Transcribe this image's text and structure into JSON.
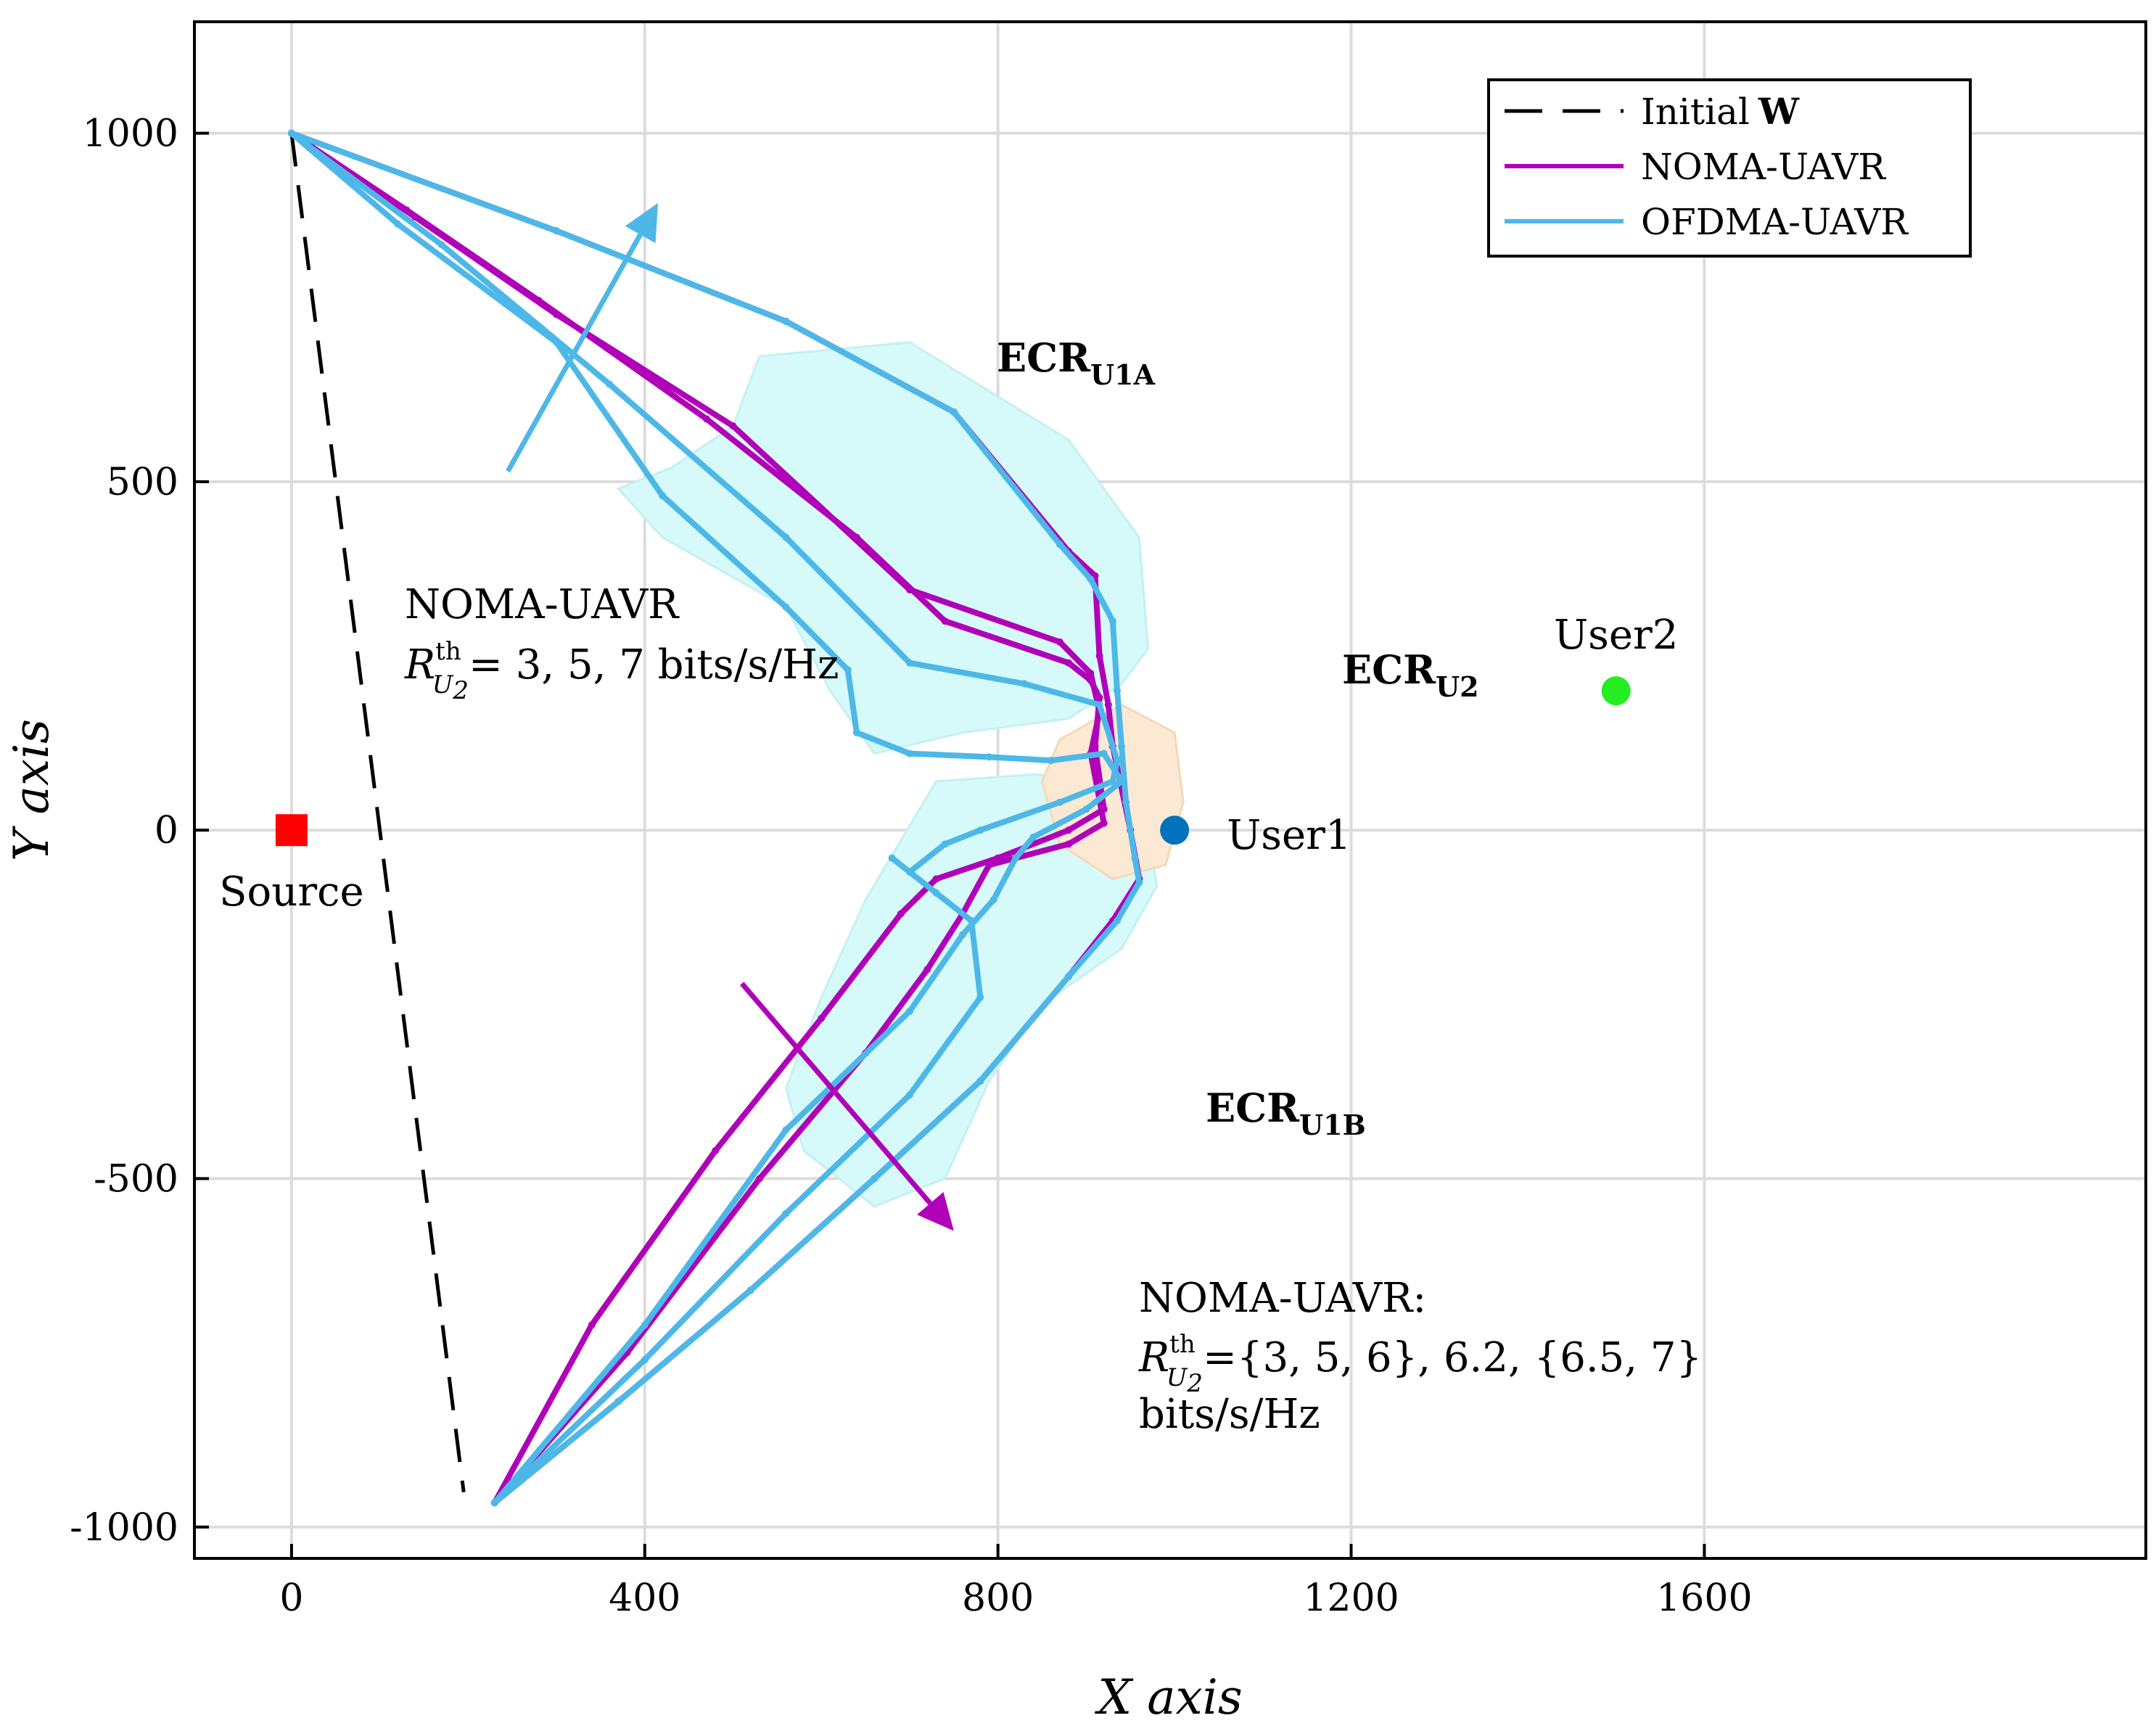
{
  "chart_data": {
    "type": "line",
    "xlabel": "X axis",
    "ylabel": "Y axis",
    "xlim": [
      -110,
      2100
    ],
    "ylim": [
      -1045,
      1160
    ],
    "xticks": [
      0,
      400,
      800,
      1200,
      1600
    ],
    "xtick_labels": [
      "0",
      "400",
      "800",
      "1200",
      "1600"
    ],
    "yticks": [
      -1000,
      -500,
      0,
      500,
      1000
    ],
    "ytick_labels": [
      "-1000",
      "-500",
      "0",
      "500",
      "1000"
    ],
    "grid": true,
    "legend": {
      "placement": "top-right",
      "entries": [
        {
          "label": "Initial",
          "bold_symbol": "W",
          "color": "#000000",
          "style": "dashed"
        },
        {
          "label": "NOMA-UAVR",
          "color": "#b000b8",
          "style": "solid"
        },
        {
          "label": "OFDMA-UAVR",
          "color": "#4db8e8",
          "style": "solid"
        }
      ]
    },
    "colors": {
      "noma": "#b000b8",
      "ofdma": "#4db8e8",
      "initial": "#000000",
      "ecr_u1": "#d6fafa",
      "ecr_u2": "#fbe9d4",
      "ecr_u1_label": "#2cc8d6",
      "ecr_u2_label": "#f4a21a",
      "source": "#ff0000",
      "user1": "#0072bd",
      "user2": "#22ee22"
    },
    "points": [
      {
        "label": "Source",
        "x": 0,
        "y": 0,
        "marker": "square",
        "color": "#ff0000"
      },
      {
        "label": "User1",
        "x": 1000,
        "y": 0,
        "marker": "circle",
        "color": "#0072bd"
      },
      {
        "label": "User2",
        "x": 1500,
        "y": 200,
        "marker": "circle",
        "color": "#22ee22"
      }
    ],
    "region_labels": [
      {
        "text": "ECR",
        "sub": "U1A",
        "color": "#2cc8d6"
      },
      {
        "text": "ECR",
        "sub": "U2",
        "color": "#f4a21a"
      },
      {
        "text": "ECR",
        "sub": "U1B",
        "color": "#2cc8d6"
      }
    ],
    "annotations": {
      "upper": {
        "line1": "NOMA-UAVR",
        "r": "R",
        "sup": "th",
        "sub": "U",
        "sub2": "2",
        "rest": "= 3, 5, 7 bits/s/Hz"
      },
      "lower": {
        "line1": "NOMA-UAVR:",
        "r": "R",
        "sup": "th",
        "sub": "U",
        "sub2": "2",
        "rest": "={3, 5, 6}, 6.2, {6.5, 7}",
        "line3": "bits/s/Hz"
      }
    },
    "series": [
      {
        "name": "Initial W",
        "kind": "initial",
        "x": [
          0,
          195
        ],
        "y": [
          1000,
          -950
        ]
      },
      {
        "name": "NOMA-UAVR",
        "kind": "noma",
        "x": [
          0,
          300,
          560,
          750,
          880,
          910,
          915,
          925,
          930,
          950,
          960,
          930,
          880,
          780,
          660,
          520,
          370,
          230
        ],
        "y": [
          1000,
          860,
          730,
          600,
          400,
          365,
          250,
          180,
          120,
          0,
          -70,
          -130,
          -210,
          -360,
          -500,
          -660,
          -820,
          -965
        ]
      },
      {
        "name": "NOMA-UAVR",
        "kind": "noma",
        "x": [
          0,
          130,
          280,
          470,
          640,
          740,
          880,
          905,
          915,
          910,
          920,
          880,
          800,
          730,
          690,
          600,
          480,
          340,
          230
        ],
        "y": [
          1000,
          890,
          760,
          590,
          420,
          300,
          240,
          215,
          190,
          120,
          30,
          0,
          -40,
          -70,
          -120,
          -270,
          -460,
          -710,
          -965
        ]
      },
      {
        "name": "NOMA-UAVR",
        "kind": "noma",
        "x": [
          0,
          140,
          300,
          500,
          700,
          870,
          905,
          915,
          905,
          920,
          880,
          790,
          760,
          720,
          650,
          530,
          380,
          230
        ],
        "y": [
          1000,
          880,
          740,
          580,
          345,
          270,
          225,
          170,
          110,
          10,
          -20,
          -50,
          -120,
          -200,
          -320,
          -500,
          -750,
          -965
        ]
      },
      {
        "name": "OFDMA-UAVR",
        "kind": "ofdma",
        "x": [
          0,
          300,
          560,
          750,
          870,
          905,
          930,
          935,
          940,
          945,
          955,
          960,
          935,
          880,
          780,
          660,
          520,
          370,
          230
        ],
        "y": [
          1000,
          860,
          730,
          600,
          410,
          360,
          300,
          200,
          120,
          40,
          -40,
          -75,
          -130,
          -210,
          -360,
          -500,
          -660,
          -820,
          -965
        ]
      },
      {
        "name": "OFDMA-UAVR",
        "kind": "ofdma",
        "x": [
          0,
          170,
          360,
          560,
          700,
          830,
          915,
          935,
          930,
          870,
          780,
          740,
          700,
          680,
          730,
          770,
          780,
          700,
          560,
          400,
          230
        ],
        "y": [
          1000,
          840,
          640,
          420,
          240,
          210,
          180,
          100,
          70,
          40,
          0,
          -20,
          -60,
          -40,
          -90,
          -130,
          -240,
          -380,
          -550,
          -760,
          -965
        ]
      },
      {
        "name": "OFDMA-UAVR",
        "kind": "ofdma",
        "x": [
          0,
          120,
          300,
          420,
          560,
          630,
          640,
          700,
          790,
          860,
          920,
          940,
          900,
          840,
          820,
          795,
          760,
          700,
          560,
          400,
          230
        ],
        "y": [
          1000,
          870,
          700,
          480,
          320,
          230,
          140,
          110,
          105,
          100,
          110,
          70,
          30,
          -10,
          -40,
          -100,
          -150,
          -260,
          -430,
          -710,
          -965
        ]
      }
    ]
  }
}
